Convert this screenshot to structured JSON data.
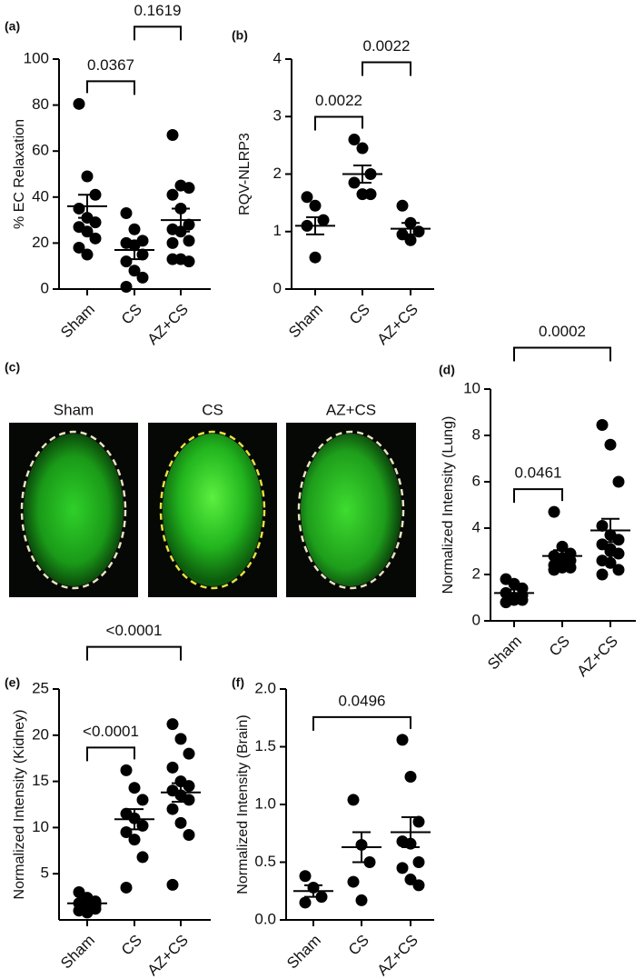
{
  "chart_data": [
    {
      "type": "dot",
      "title": "(a)",
      "ylabel": "% EC Relaxation",
      "categories": [
        "Sham",
        "CS",
        "AZ+CS"
      ],
      "points": [
        [
          80.5,
          49,
          41,
          35,
          31,
          29,
          27,
          25,
          22,
          18,
          15
        ],
        [
          33,
          26,
          21,
          20,
          19,
          15,
          12,
          8,
          5,
          1
        ],
        [
          67,
          45,
          44,
          41,
          35,
          28,
          26,
          25,
          21,
          20,
          13,
          12,
          13
        ]
      ],
      "means": [
        36,
        17,
        30
      ],
      "sem": [
        5,
        4,
        5
      ],
      "ylim": [
        0,
        100
      ],
      "yticks": [
        0,
        20,
        40,
        60,
        80,
        100
      ],
      "brackets": [
        {
          "groups": [
            0,
            1
          ],
          "label": "0.0367"
        },
        {
          "groups": [
            1,
            2
          ],
          "label": "0.1619"
        }
      ]
    },
    {
      "type": "dot",
      "title": "(b)",
      "ylabel": "RQV-NLRP3",
      "categories": [
        "Sham",
        "CS",
        "AZ+CS"
      ],
      "points": [
        [
          1.6,
          1.45,
          1.2,
          1.1,
          0.55
        ],
        [
          2.6,
          2.45,
          2.0,
          1.85,
          1.65,
          1.65
        ],
        [
          1.45,
          1.15,
          1.0,
          0.95,
          0.85
        ]
      ],
      "means": [
        1.1,
        2.0,
        1.05
      ],
      "sem": [
        0.15,
        0.15,
        0.1
      ],
      "ylim": [
        0,
        4
      ],
      "yticks": [
        0,
        1,
        2,
        3,
        4
      ],
      "brackets": [
        {
          "groups": [
            0,
            1
          ],
          "label": "0.0022"
        },
        {
          "groups": [
            1,
            2
          ],
          "label": "0.0022"
        }
      ]
    },
    {
      "type": "image",
      "title": "(c)",
      "categories": [
        "Sham",
        "CS",
        "AZ+CS"
      ]
    },
    {
      "type": "dot",
      "title": "(d)",
      "ylabel": "Normalized Intensity (Lung)",
      "categories": [
        "Sham",
        "CS",
        "AZ+CS"
      ],
      "points": [
        [
          1.8,
          1.6,
          1.4,
          1.2,
          1.0,
          0.9,
          0.8,
          0.9,
          1.1
        ],
        [
          4.7,
          3.2,
          2.9,
          2.8,
          2.7,
          2.6,
          2.4,
          2.3,
          2.3,
          2.2
        ],
        [
          8.45,
          7.6,
          6.0,
          4.1,
          3.7,
          3.5,
          3.3,
          3.1,
          2.9,
          2.6,
          2.5,
          2.2,
          2.0,
          3.0
        ]
      ],
      "means": [
        1.2,
        2.8,
        3.9
      ],
      "sem": [
        0.15,
        0.25,
        0.5
      ],
      "ylim": [
        0,
        10
      ],
      "yticks": [
        0,
        2,
        4,
        6,
        8,
        10
      ],
      "brackets": [
        {
          "groups": [
            0,
            1
          ],
          "label": "0.0461"
        },
        {
          "groups": [
            0,
            2
          ],
          "label": "0.0002"
        }
      ]
    },
    {
      "type": "dot",
      "title": "(e)",
      "ylabel": "Normalized Intensity (Kidney)",
      "categories": [
        "Sham",
        "CS",
        "AZ+CS"
      ],
      "points": [
        [
          3.0,
          2.4,
          2.0,
          1.8,
          1.5,
          1.2,
          1.0,
          0.8,
          1.6
        ],
        [
          16.2,
          14.3,
          13.0,
          11.5,
          11.0,
          10.2,
          9.5,
          8.7,
          6.8,
          3.5
        ],
        [
          21.2,
          19.6,
          18.0,
          16.5,
          15.0,
          14.5,
          14.0,
          13.5,
          13.0,
          12.0,
          10.5,
          9.2,
          3.8
        ]
      ],
      "means": [
        1.8,
        10.9,
        13.8
      ],
      "sem": [
        0.3,
        1.1,
        1.0
      ],
      "ylim": [
        0,
        25
      ],
      "yticks": [
        5,
        10,
        15,
        20,
        25
      ],
      "brackets": [
        {
          "groups": [
            0,
            1
          ],
          "label": "<0.0001"
        },
        {
          "groups": [
            0,
            2
          ],
          "label": "<0.0001"
        }
      ]
    },
    {
      "type": "dot",
      "title": "(f)",
      "ylabel": "Normalized Intensity (Brain)",
      "categories": [
        "Sham",
        "CS",
        "AZ+CS"
      ],
      "points": [
        [
          0.38,
          0.28,
          0.2,
          0.15
        ],
        [
          1.04,
          0.65,
          0.5,
          0.33,
          0.17
        ],
        [
          1.56,
          1.24,
          0.85,
          0.68,
          0.66,
          0.5,
          0.45,
          0.35,
          0.3
        ]
      ],
      "means": [
        0.25,
        0.63,
        0.76
      ],
      "sem": [
        0.05,
        0.13,
        0.13
      ],
      "ylim": [
        0,
        2
      ],
      "yticks": [
        {
          "value": 0,
          "label": "0.0"
        },
        0.5,
        {
          "value": 1,
          "label": "1.0"
        },
        1.5,
        {
          "value": 2,
          "label": "2.0"
        }
      ],
      "brackets": [
        {
          "groups": [
            0,
            2
          ],
          "label": "0.0496"
        }
      ]
    }
  ]
}
